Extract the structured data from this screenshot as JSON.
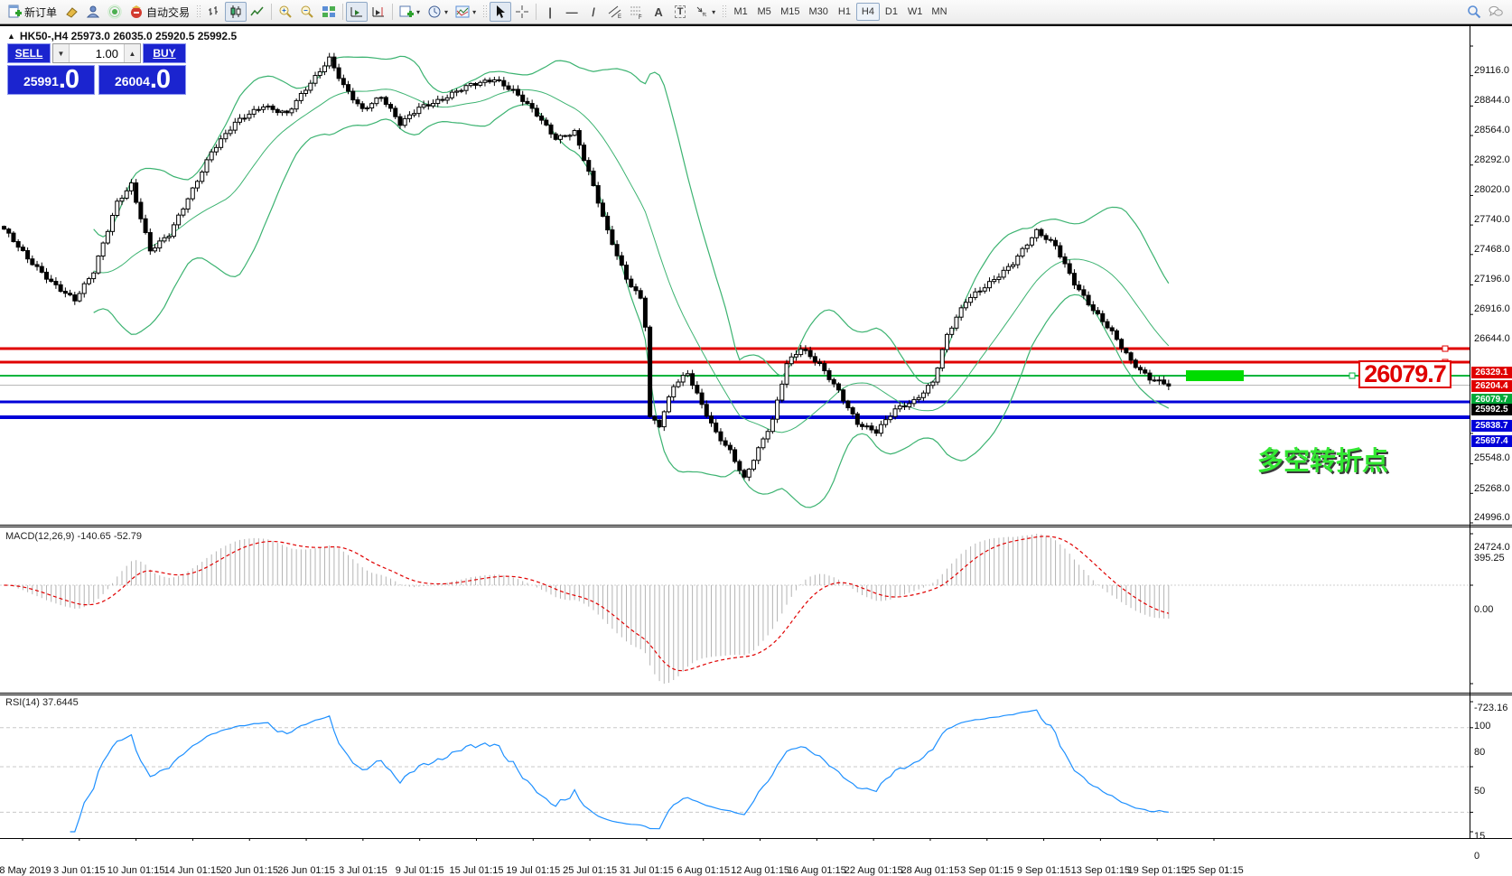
{
  "toolbar": {
    "new_order": "新订单",
    "auto_trading": "自动交易",
    "text_tool": "A",
    "label_tool": "T",
    "channel_letter": "E",
    "fibo_letter": "F",
    "timeframes": [
      "M1",
      "M5",
      "M15",
      "M30",
      "H1",
      "H4",
      "D1",
      "W1",
      "MN"
    ],
    "active_timeframe": "H4"
  },
  "chart": {
    "title_line": "HK50-,H4  25973.0 26035.0 25920.5 25992.5",
    "big_price_label": "26079.7",
    "annotation": "多空转折点"
  },
  "trade_panel": {
    "sell_label": "SELL",
    "buy_label": "BUY",
    "volume": "1.00",
    "sell_price": "25991",
    "sell_frac": ".0",
    "buy_price": "26004",
    "buy_frac": ".0"
  },
  "macd": {
    "label": "MACD(12,26,9) -140.65 -52.79",
    "ticks": [
      {
        "v": 395.25,
        "label": "395.25"
      },
      {
        "v": 0,
        "label": "0.00"
      },
      {
        "v": -723.16,
        "label": "-723.16"
      }
    ]
  },
  "rsi": {
    "label": "RSI(14) 37.6445",
    "ticks": [
      {
        "v": 100,
        "label": "100"
      },
      {
        "v": 80,
        "label": "80"
      },
      {
        "v": 50,
        "label": "50"
      },
      {
        "v": 15,
        "label": "15"
      },
      {
        "v": 0,
        "label": "0"
      }
    ],
    "dashed_levels": [
      80,
      50,
      15
    ]
  },
  "chart_data": {
    "type": "candlestick",
    "symbol": "HK50-",
    "period": "H4",
    "ohlc_header": {
      "open": 25973.0,
      "high": 26035.0,
      "low": 25920.5,
      "close": 25992.5
    },
    "bid": 25991.0,
    "ask": 26004.0,
    "y_ticks": [
      "29116.0",
      "28844.0",
      "28564.0",
      "28292.0",
      "28020.0",
      "27740.0",
      "27468.0",
      "27196.0",
      "26916.0",
      "26644.0",
      "25548.0",
      "25268.0",
      "24996.0",
      "24724.0"
    ],
    "x_labels": [
      "28 May 2019",
      "3 Jun 01:15",
      "10 Jun 01:15",
      "14 Jun 01:15",
      "20 Jun 01:15",
      "26 Jun 01:15",
      "3 Jul 01:15",
      "9 Jul 01:15",
      "15 Jul 01:15",
      "19 Jul 01:15",
      "25 Jul 01:15",
      "31 Jul 01:15",
      "6 Aug 01:15",
      "12 Aug 01:15",
      "16 Aug 01:15",
      "22 Aug 01:15",
      "28 Aug 01:15",
      "3 Sep 01:15",
      "9 Sep 01:15",
      "13 Sep 01:15",
      "19 Sep 01:15",
      "25 Sep 01:15"
    ],
    "levels": [
      {
        "price": 26329.1,
        "tag": "26329.1",
        "line": "#e00000",
        "tag_bg": "#e00000",
        "width": 3,
        "handle": 1597
      },
      {
        "price": 26204.4,
        "tag": "26204.4",
        "line": "#e00000",
        "tag_bg": "#e00000",
        "width": 3,
        "handle": 1597
      },
      {
        "price": 26079.7,
        "tag": "26079.7",
        "line": "#00b53c",
        "tag_bg": "#00a838",
        "width": 2,
        "handle": 1494
      },
      {
        "price": 25992.5,
        "tag": "25992.5",
        "line": "#b8b8b8",
        "tag_bg": "#000000",
        "width": 1,
        "handle": null
      },
      {
        "price": 25838.7,
        "tag": "25838.7",
        "line": "#0000d8",
        "tag_bg": "#0000d8",
        "width": 3,
        "handle": null
      },
      {
        "price": 25697.4,
        "tag": "25697.4",
        "line": "#0000d8",
        "tag_bg": "#0000d8",
        "width": 4,
        "handle": null
      }
    ],
    "highlight_bar": {
      "price": 26079.7,
      "color": "#00dc00"
    },
    "indicators": {
      "bands": {
        "period": 20,
        "deviation": 2,
        "color": "#3cb371"
      },
      "macd": {
        "fast": 12,
        "slow": 26,
        "signal": 9,
        "value": -140.65,
        "signal_value": -52.79,
        "scale_max": 395.25,
        "scale_min": -723.16,
        "hist_color": "#b4b4b4",
        "signal_color": "#e00000"
      },
      "rsi": {
        "period": 14,
        "value": 37.6445,
        "color": "#1e90ff"
      }
    },
    "candle_count": 248,
    "price_anchors": [
      [
        0,
        27430
      ],
      [
        5,
        27150
      ],
      [
        10,
        26950
      ],
      [
        15,
        26780
      ],
      [
        19,
        27030
      ],
      [
        24,
        27680
      ],
      [
        27,
        27850
      ],
      [
        31,
        27230
      ],
      [
        35,
        27370
      ],
      [
        40,
        27800
      ],
      [
        44,
        28150
      ],
      [
        49,
        28400
      ],
      [
        55,
        28570
      ],
      [
        60,
        28500
      ],
      [
        66,
        28820
      ],
      [
        69,
        29000
      ],
      [
        72,
        28760
      ],
      [
        76,
        28530
      ],
      [
        80,
        28640
      ],
      [
        84,
        28400
      ],
      [
        88,
        28560
      ],
      [
        93,
        28620
      ],
      [
        99,
        28760
      ],
      [
        104,
        28820
      ],
      [
        108,
        28700
      ],
      [
        113,
        28480
      ],
      [
        117,
        28270
      ],
      [
        121,
        28330
      ],
      [
        124,
        27950
      ],
      [
        128,
        27400
      ],
      [
        132,
        26980
      ],
      [
        135,
        26800
      ],
      [
        136,
        26550
      ],
      [
        137,
        25700
      ],
      [
        139,
        25620
      ],
      [
        142,
        25980
      ],
      [
        145,
        26100
      ],
      [
        148,
        25820
      ],
      [
        151,
        25560
      ],
      [
        154,
        25380
      ],
      [
        157,
        25120
      ],
      [
        160,
        25400
      ],
      [
        163,
        25680
      ],
      [
        166,
        26200
      ],
      [
        169,
        26330
      ],
      [
        173,
        26170
      ],
      [
        177,
        25940
      ],
      [
        181,
        25650
      ],
      [
        185,
        25560
      ],
      [
        189,
        25760
      ],
      [
        193,
        25850
      ],
      [
        197,
        26030
      ],
      [
        200,
        26450
      ],
      [
        204,
        26760
      ],
      [
        209,
        26940
      ],
      [
        214,
        27120
      ],
      [
        219,
        27400
      ],
      [
        223,
        27280
      ],
      [
        227,
        26940
      ],
      [
        231,
        26680
      ],
      [
        235,
        26470
      ],
      [
        239,
        26220
      ],
      [
        243,
        26060
      ],
      [
        247,
        25990
      ]
    ]
  }
}
